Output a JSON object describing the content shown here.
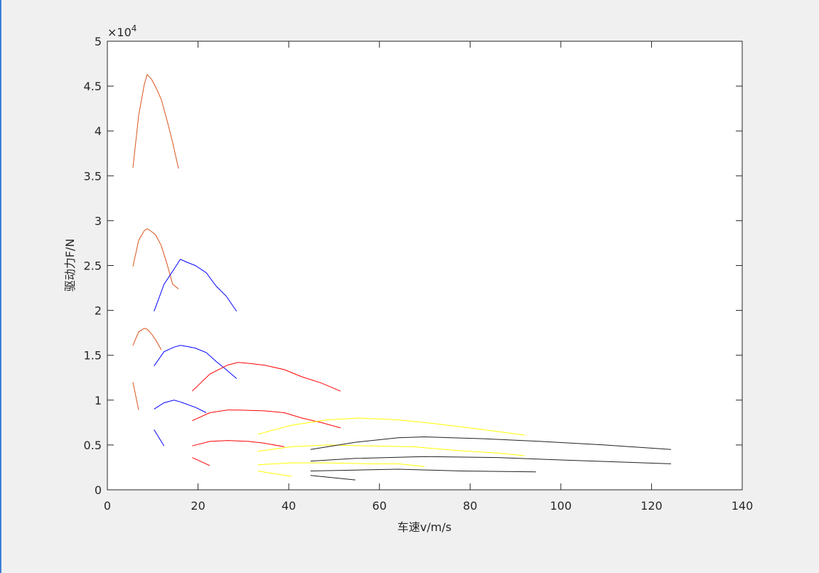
{
  "chart_data": {
    "type": "line",
    "xlabel": "车速v/m/s",
    "ylabel": "驱动力F/N",
    "y_multiplier_base": "×10",
    "y_multiplier_exp": "4",
    "xlim": [
      0,
      140
    ],
    "xticks": [
      0,
      20,
      40,
      60,
      80,
      100,
      120,
      140
    ],
    "ylim": [
      0,
      5
    ],
    "yticks": [
      0,
      0.5,
      1,
      1.5,
      2,
      2.5,
      3,
      3.5,
      4,
      4.5,
      5
    ],
    "box": true,
    "series": [
      {
        "color": "#d95319",
        "x": [
          5.64,
          6.9,
          8.15,
          8.78,
          9.7,
          10.66,
          11.9,
          13.2,
          14.4,
          15.7
        ],
        "values": [
          3.59,
          4.17,
          4.52,
          4.63,
          4.58,
          4.49,
          4.35,
          4.11,
          3.87,
          3.58
        ]
      },
      {
        "color": "#d95319",
        "x": [
          5.64,
          6.9,
          8.15,
          8.78,
          9.7,
          10.66,
          11.9,
          13.2,
          14.4,
          15.7
        ],
        "values": [
          2.49,
          2.78,
          2.89,
          2.91,
          2.88,
          2.84,
          2.72,
          2.51,
          2.29,
          2.24
        ]
      },
      {
        "color": "#d95319",
        "x": [
          5.64,
          6.9,
          8.15,
          8.78,
          9.7,
          10.66,
          11.9
        ],
        "values": [
          1.61,
          1.76,
          1.8,
          1.79,
          1.74,
          1.67,
          1.56
        ]
      },
      {
        "color": "#d95319",
        "x": [
          5.64,
          6.9
        ],
        "values": [
          1.2,
          0.89
        ]
      },
      {
        "color": "#0000ff",
        "x": [
          10.3,
          12.5,
          14.7,
          16.1,
          17.4,
          19.4,
          21.8,
          24.0,
          26.2,
          28.5
        ],
        "values": [
          1.99,
          2.29,
          2.46,
          2.57,
          2.54,
          2.5,
          2.42,
          2.27,
          2.16,
          1.99
        ]
      },
      {
        "color": "#0000ff",
        "x": [
          10.3,
          12.5,
          14.7,
          16.1,
          17.4,
          19.4,
          21.8,
          24.0,
          26.2,
          28.5
        ],
        "values": [
          1.38,
          1.54,
          1.59,
          1.61,
          1.6,
          1.58,
          1.53,
          1.43,
          1.34,
          1.24
        ]
      },
      {
        "color": "#0000ff",
        "x": [
          10.3,
          12.5,
          14.7,
          16.1,
          19.4,
          21.8
        ],
        "values": [
          0.9,
          0.97,
          1.0,
          0.98,
          0.92,
          0.86
        ]
      },
      {
        "color": "#0000ff",
        "x": [
          10.3,
          12.5
        ],
        "values": [
          0.67,
          0.49
        ]
      },
      {
        "color": "#ff0000",
        "x": [
          18.7,
          22.6,
          26.5,
          28.8,
          31.2,
          34.6,
          39.0,
          42.9,
          47.2,
          51.4
        ],
        "values": [
          1.1,
          1.29,
          1.39,
          1.42,
          1.41,
          1.39,
          1.34,
          1.26,
          1.19,
          1.1
        ]
      },
      {
        "color": "#ff0000",
        "x": [
          18.7,
          22.6,
          26.5,
          28.8,
          34.6,
          39.0,
          42.9,
          47.2,
          51.4
        ],
        "values": [
          0.77,
          0.86,
          0.89,
          0.89,
          0.88,
          0.86,
          0.8,
          0.75,
          0.69
        ]
      },
      {
        "color": "#ff0000",
        "x": [
          18.7,
          22.6,
          26.5,
          31.2,
          34.6,
          39.0
        ],
        "values": [
          0.49,
          0.54,
          0.55,
          0.54,
          0.52,
          0.48
        ]
      },
      {
        "color": "#ff0000",
        "x": [
          18.7,
          22.6
        ],
        "values": [
          0.36,
          0.27
        ]
      },
      {
        "color": "#ffff00",
        "x": [
          33.2,
          40.6,
          48.4,
          55.5,
          64.1,
          71.9,
          79.8,
          86.1,
          92.0
        ],
        "values": [
          0.62,
          0.72,
          0.78,
          0.8,
          0.78,
          0.74,
          0.69,
          0.65,
          0.61
        ]
      },
      {
        "color": "#ffff00",
        "x": [
          33.2,
          40.6,
          48.4,
          57.8,
          67.3,
          76.7,
          86.1,
          92.0
        ],
        "values": [
          0.43,
          0.48,
          0.5,
          0.49,
          0.48,
          0.44,
          0.41,
          0.38
        ]
      },
      {
        "color": "#ffff00",
        "x": [
          33.2,
          40.6,
          48.4,
          57.8,
          64.1,
          69.9
        ],
        "values": [
          0.28,
          0.3,
          0.3,
          0.29,
          0.29,
          0.26
        ]
      },
      {
        "color": "#ffff00",
        "x": [
          33.2,
          40.6
        ],
        "values": [
          0.21,
          0.15
        ]
      },
      {
        "color": "#202020",
        "x": [
          44.8,
          54.7,
          64.1,
          69.9,
          82.9,
          95.5,
          109.6,
          124.3
        ],
        "values": [
          0.45,
          0.53,
          0.58,
          0.59,
          0.57,
          0.54,
          0.5,
          0.45
        ]
      },
      {
        "color": "#202020",
        "x": [
          44.8,
          54.7,
          69.9,
          86.1,
          101.7,
          124.3
        ],
        "values": [
          0.32,
          0.35,
          0.37,
          0.36,
          0.33,
          0.29
        ]
      },
      {
        "color": "#202020",
        "x": [
          44.8,
          54.7,
          64.1,
          78.2,
          94.5
        ],
        "values": [
          0.21,
          0.22,
          0.23,
          0.21,
          0.2
        ]
      },
      {
        "color": "#202020",
        "x": [
          44.8,
          54.7
        ],
        "values": [
          0.16,
          0.11
        ]
      }
    ]
  }
}
